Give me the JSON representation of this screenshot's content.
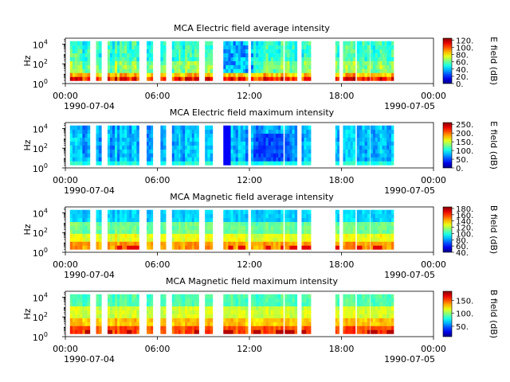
{
  "chart_data": [
    {
      "type": "heatmap",
      "title": "MCA  Electric field average intensity",
      "ylabel": "Hz",
      "colorbar_label": "E field (dB)",
      "colorbar_ticks": [
        "0.",
        "20.",
        "40.",
        "60.",
        "80.",
        "100.",
        "120."
      ],
      "colorbar_range": [
        0,
        125
      ],
      "xtick_labels": [
        "00:00",
        "06:00",
        "12:00",
        "18:00",
        "00:00"
      ],
      "xtick_hours": [
        0,
        6,
        12,
        18,
        24
      ],
      "xtick_dates": [
        "1990-07-04",
        "1990-07-05"
      ],
      "ytick_exponents": [
        "0",
        "2",
        "4"
      ],
      "y_log_range": [
        0,
        4.6
      ],
      "profile": "eavg"
    },
    {
      "type": "heatmap",
      "title": "MCA  Electric field maximum intensity",
      "ylabel": "Hz",
      "colorbar_label": "E field (dB)",
      "colorbar_ticks": [
        "0.",
        "50.",
        "100.",
        "150.",
        "200.",
        "250."
      ],
      "colorbar_range": [
        0,
        260
      ],
      "xtick_labels": [
        "00:00",
        "06:00",
        "12:00",
        "18:00",
        "00:00"
      ],
      "xtick_hours": [
        0,
        6,
        12,
        18,
        24
      ],
      "xtick_dates": [
        "1990-07-04",
        "1990-07-05"
      ],
      "ytick_exponents": [
        "0",
        "2",
        "4"
      ],
      "y_log_range": [
        0,
        4.6
      ],
      "profile": "emax"
    },
    {
      "type": "heatmap",
      "title": "MCA  Magnetic field average intensity",
      "ylabel": "Hz",
      "colorbar_label": "B field (dB)",
      "colorbar_ticks": [
        "40.",
        "60.",
        "80.",
        "100.",
        "120.",
        "140.",
        "160.",
        "180."
      ],
      "colorbar_range": [
        40,
        185
      ],
      "xtick_labels": [
        "00:00",
        "06:00",
        "12:00",
        "18:00",
        "00:00"
      ],
      "xtick_hours": [
        0,
        6,
        12,
        18,
        24
      ],
      "xtick_dates": [
        "1990-07-04",
        "1990-07-05"
      ],
      "ytick_exponents": [
        "0",
        "2",
        "4"
      ],
      "y_log_range": [
        0,
        4.6
      ],
      "profile": "bavg"
    },
    {
      "type": "heatmap",
      "title": "MCA  Magnetic field maximum intensity",
      "ylabel": "Hz",
      "colorbar_label": "B field (dB)",
      "colorbar_ticks": [
        "50.",
        "100.",
        "150."
      ],
      "colorbar_range": [
        10,
        185
      ],
      "xtick_labels": [
        "00:00",
        "06:00",
        "12:00",
        "18:00",
        "00:00"
      ],
      "xtick_hours": [
        0,
        6,
        12,
        18,
        24
      ],
      "xtick_dates": [
        "1990-07-04",
        "1990-07-05"
      ],
      "ytick_exponents": [
        "0",
        "2",
        "4"
      ],
      "y_log_range": [
        0,
        4.6
      ],
      "profile": "bmax"
    }
  ],
  "data_segments_hours": [
    [
      0.3,
      1.6
    ],
    [
      2.0,
      2.35
    ],
    [
      2.75,
      4.8
    ],
    [
      5.3,
      5.7
    ],
    [
      6.2,
      6.55
    ],
    [
      6.95,
      7.55
    ],
    [
      7.5,
      8.7
    ],
    [
      9.1,
      9.6
    ],
    [
      10.3,
      11.9
    ],
    [
      12.1,
      14.2
    ],
    [
      14.3,
      15.1
    ],
    [
      15.4,
      16.0
    ],
    [
      17.6,
      17.85
    ],
    [
      18.1,
      18.9
    ],
    [
      19.0,
      19.85
    ],
    [
      19.9,
      21.4
    ]
  ],
  "data_freq_log_range": [
    0.3,
    4.3
  ]
}
